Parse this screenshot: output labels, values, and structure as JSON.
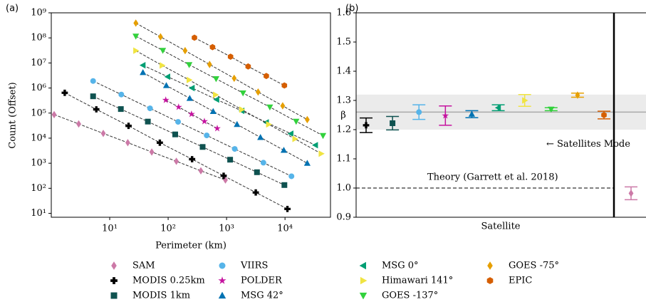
{
  "panel_labels": [
    "(a)",
    "(b)"
  ],
  "chart_data": [
    {
      "type": "scatter",
      "x_label": "Perimeter (km)",
      "y_label": "Count (Offset)",
      "xlog": true,
      "ylog": true,
      "xlim": [
        1,
        60000
      ],
      "ylim": [
        7,
        1000000000
      ],
      "xticks": [
        {
          "value": 10,
          "label": "10¹"
        },
        {
          "value": 100,
          "label": "10²"
        },
        {
          "value": 1000,
          "label": "10³"
        },
        {
          "value": 10000,
          "label": "10⁴"
        }
      ],
      "yticks": [
        {
          "value": 10,
          "label": "10¹"
        },
        {
          "value": 100,
          "label": "10²"
        },
        {
          "value": 1000,
          "label": "10³"
        },
        {
          "value": 10000,
          "label": "10⁴"
        },
        {
          "value": 100000,
          "label": "10⁵"
        },
        {
          "value": 1000000,
          "label": "10⁶"
        },
        {
          "value": 10000000,
          "label": "10⁷"
        },
        {
          "value": 100000000,
          "label": "10⁸"
        },
        {
          "value": 1000000000,
          "label": "10⁹"
        }
      ],
      "series": [
        {
          "name": "SAM",
          "color": "#cc79a7",
          "marker": "diamond",
          "x": [
            1.12,
            2.95,
            7.76,
            20.4,
            52.5,
            138,
            363,
            955
          ],
          "values": [
            87000,
            37000,
            15500,
            6600,
            2800,
            1200,
            500,
            214
          ]
        },
        {
          "name": "MODIS 0.25km",
          "color": "#000000",
          "marker": "plus",
          "x": [
            1.7,
            5.9,
            21,
            72,
            257,
            891,
            3160,
            11000
          ],
          "values": [
            646000,
            141000,
            31000,
            6600,
            1450,
            316,
            68,
            15
          ]
        },
        {
          "name": "MODIS 1km",
          "color": "#0f5250",
          "marker": "square",
          "x": [
            5.2,
            15.5,
            45,
            132,
            389,
            1150,
            3310,
            9770
          ],
          "values": [
            468000,
            145000,
            45700,
            14100,
            4470,
            1380,
            437,
            135
          ]
        },
        {
          "name": "VIIRS",
          "color": "#56b4e9",
          "marker": "circle",
          "x": [
            5.2,
            15.8,
            49,
            148,
            457,
            1380,
            4270,
            12900
          ],
          "values": [
            1910000,
            550000,
            155000,
            44700,
            12900,
            3720,
            1050,
            302
          ]
        },
        {
          "name": "POLDER",
          "color": "#c5139f",
          "marker": "star",
          "x": [
            91,
            151,
            251,
            417,
            692
          ],
          "values": [
            331000,
            174000,
            91200,
            46800,
            24500
          ]
        },
        {
          "name": "MSG 42°",
          "color": "#0072b2",
          "marker": "tri-up",
          "x": [
            37,
            93,
            234,
            589,
            1510,
            3800,
            9550,
            24000
          ],
          "values": [
            4170000,
            1260000,
            389000,
            117000,
            35500,
            10700,
            3310,
            1000
          ]
        },
        {
          "name": "MSG 0°",
          "color": "#009e73",
          "marker": "tri-left",
          "x": [
            37,
            98,
            257,
            676,
            1820,
            4790,
            12600,
            33100
          ],
          "values": [
            8130000,
            2820000,
            1000000,
            347000,
            123000,
            42700,
            15100,
            5250
          ]
        },
        {
          "name": "Himawari 141°",
          "color": "#f0e442",
          "marker": "tri-right",
          "x": [
            28,
            79,
            229,
            646,
            1820,
            5250,
            14800,
            41700
          ],
          "values": [
            30900000,
            7940000,
            2090000,
            537000,
            138000,
            35500,
            9330,
            2400
          ]
        },
        {
          "name": "GOES -137°",
          "color": "#32d13c",
          "marker": "tri-down",
          "x": [
            28,
            81,
            229,
            661,
            1910,
            5500,
            15500,
            44700
          ],
          "values": [
            117000000,
            31600000,
            8510000,
            2340000,
            631000,
            174000,
            46800,
            12600
          ]
        },
        {
          "name": "GOES -75°",
          "color": "#e69f00",
          "marker": "diamond",
          "x": [
            28,
            74,
            195,
            513,
            1350,
            3470,
            9120,
            24000
          ],
          "values": [
            389000000,
            110000000,
            30900000,
            8710000,
            2450000,
            692000,
            195000,
            55000
          ]
        },
        {
          "name": "EPIC",
          "color": "#d55e00",
          "marker": "hexagon",
          "x": [
            282,
            575,
            1170,
            2340,
            4790,
            9770
          ],
          "values": [
            102000000,
            42700000,
            17800000,
            7240000,
            3020000,
            1260000
          ]
        }
      ]
    },
    {
      "type": "errorbar",
      "x_label": "Satellite",
      "y_label": "β",
      "ylim": [
        0.9,
        1.6
      ],
      "yticks": [
        0.9,
        {
          "value": 1,
          "label": "1.0"
        },
        1.1,
        1.2,
        1.3,
        1.4,
        1.5,
        1.6
      ],
      "categories": [
        null,
        null,
        null,
        null,
        null,
        null,
        null,
        null,
        null,
        null,
        null
      ],
      "values": [
        1.215,
        1.222,
        1.26,
        1.248,
        1.253,
        1.275,
        1.3,
        1.27,
        1.318,
        1.25,
        0.982
      ],
      "errors": [
        0.025,
        0.023,
        0.025,
        0.033,
        0.012,
        0.01,
        0.02,
        0.005,
        0.007,
        0.013,
        0.022
      ],
      "colors": [
        "#000000",
        "#0f5250",
        "#56b4e9",
        "#c5139f",
        "#0072b2",
        "#009e73",
        "#f0e442",
        "#32d13c",
        "#e69f00",
        "#d55e00",
        "#cc79a7"
      ],
      "markers": [
        "plus",
        "square",
        "circle",
        "star",
        "tri-up",
        "tri-left",
        "tri-right",
        "tri-down",
        "diamond",
        "hexagon",
        "diamond"
      ],
      "mode_band": [
        1.2,
        1.32
      ],
      "mode_line": 1.26,
      "mode_label": "← Satellites Mode",
      "theory_line": 1.0,
      "theory_label": "Theory (Garrett et al. 2018)"
    }
  ]
}
